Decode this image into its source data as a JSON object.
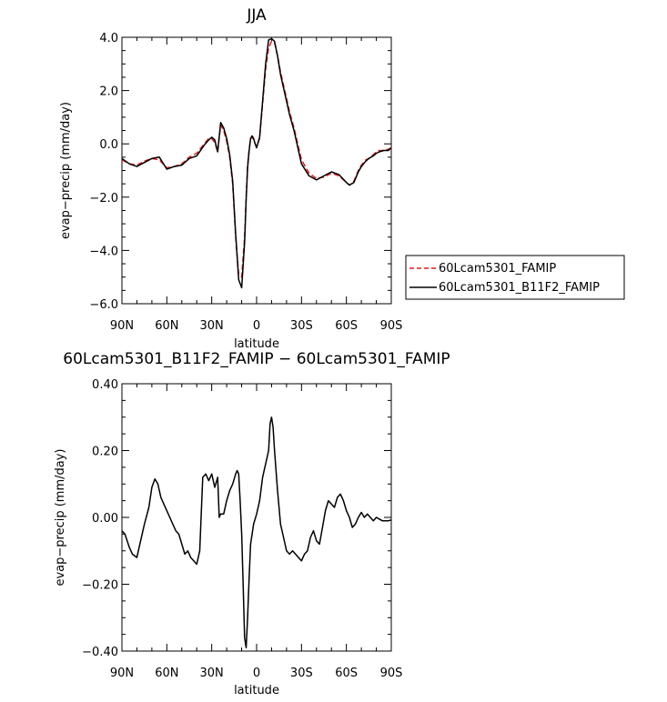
{
  "chart_data": [
    {
      "type": "line",
      "title": "JJA",
      "xlabel": "latitude",
      "ylabel": "evap−precip (mm/day)",
      "x_tick_labels": [
        "90N",
        "60N",
        "30N",
        "0",
        "30S",
        "60S",
        "90S"
      ],
      "x_tick_values": [
        90,
        60,
        30,
        0,
        -30,
        -60,
        -90
      ],
      "xlim": [
        90,
        -90
      ],
      "y_tick_labels": [
        "4.0",
        "2.0",
        "0.0",
        "−2.0",
        "−4.0",
        "−6.0"
      ],
      "y_tick_values": [
        4,
        2,
        0,
        -2,
        -4,
        -6
      ],
      "ylim": [
        -6,
        4
      ],
      "legend": {
        "placement": "right"
      },
      "series": [
        {
          "name": "60Lcam5301_FAMIP",
          "color": "#e31a1c",
          "dashed": true,
          "x": [
            90,
            85,
            80,
            75,
            70,
            65,
            60,
            55,
            50,
            45,
            40,
            35,
            32,
            30,
            28,
            26,
            24,
            22,
            20,
            18,
            16,
            14,
            12,
            10,
            8,
            7,
            6,
            5,
            4,
            3,
            2,
            1,
            0,
            -2,
            -4,
            -6,
            -8,
            -10,
            -12,
            -14,
            -16,
            -18,
            -20,
            -22,
            -25,
            -30,
            -35,
            -40,
            -45,
            -50,
            -55,
            -60,
            -62,
            -65,
            -68,
            -70,
            -73,
            -75,
            -78,
            -80,
            -82,
            -85,
            -88,
            -90
          ],
          "y": [
            -0.6,
            -0.75,
            -0.8,
            -0.65,
            -0.55,
            -0.6,
            -0.9,
            -0.85,
            -0.75,
            -0.5,
            -0.35,
            0.0,
            0.2,
            0.2,
            0.05,
            -0.3,
            0.7,
            0.5,
            0.1,
            -0.5,
            -1.5,
            -3.5,
            -4.9,
            -5.0,
            -3.5,
            -2.0,
            -0.8,
            -0.2,
            0.2,
            0.25,
            0.15,
            0.0,
            -0.1,
            0.2,
            1.5,
            2.8,
            3.6,
            3.85,
            3.8,
            3.3,
            2.7,
            2.2,
            1.7,
            1.2,
            0.6,
            -0.6,
            -1.1,
            -1.3,
            -1.25,
            -1.1,
            -1.2,
            -1.45,
            -1.55,
            -1.4,
            -1.0,
            -0.8,
            -0.6,
            -0.55,
            -0.4,
            -0.3,
            -0.25,
            -0.25,
            -0.2,
            -0.15
          ]
        },
        {
          "name": "60Lcam5301_B11F2_FAMIP",
          "color": "#000000",
          "dashed": false,
          "x": [
            90,
            85,
            80,
            75,
            70,
            65,
            60,
            55,
            50,
            45,
            40,
            35,
            32,
            30,
            28,
            26,
            24,
            22,
            20,
            18,
            16,
            14,
            12,
            10,
            8,
            7,
            6,
            5,
            4,
            3,
            2,
            1,
            0,
            -2,
            -4,
            -6,
            -8,
            -10,
            -12,
            -14,
            -16,
            -18,
            -20,
            -22,
            -25,
            -30,
            -35,
            -40,
            -45,
            -50,
            -55,
            -60,
            -62,
            -65,
            -68,
            -70,
            -73,
            -75,
            -78,
            -80,
            -82,
            -85,
            -88,
            -90
          ],
          "y": [
            -0.55,
            -0.75,
            -0.85,
            -0.7,
            -0.55,
            -0.5,
            -0.95,
            -0.85,
            -0.8,
            -0.55,
            -0.45,
            -0.05,
            0.15,
            0.25,
            0.15,
            -0.3,
            0.8,
            0.6,
            0.2,
            -0.4,
            -1.4,
            -3.4,
            -5.1,
            -5.4,
            -3.7,
            -2.1,
            -0.9,
            -0.25,
            0.2,
            0.3,
            0.2,
            0.0,
            -0.15,
            0.25,
            1.6,
            3.0,
            3.9,
            3.95,
            3.85,
            3.3,
            2.6,
            2.1,
            1.6,
            1.1,
            0.5,
            -0.75,
            -1.2,
            -1.35,
            -1.2,
            -1.05,
            -1.15,
            -1.45,
            -1.55,
            -1.45,
            -1.05,
            -0.85,
            -0.65,
            -0.55,
            -0.45,
            -0.35,
            -0.3,
            -0.25,
            -0.25,
            -0.15
          ]
        }
      ]
    },
    {
      "type": "line",
      "title": "60Lcam5301_B11F2_FAMIP − 60Lcam5301_FAMIP",
      "xlabel": "latitude",
      "ylabel": "evap−precip (mm/day)",
      "x_tick_labels": [
        "90N",
        "60N",
        "30N",
        "0",
        "30S",
        "60S",
        "90S"
      ],
      "x_tick_values": [
        90,
        60,
        30,
        0,
        -30,
        -60,
        -90
      ],
      "xlim": [
        90,
        -90
      ],
      "y_tick_labels": [
        "0.40",
        "0.20",
        "0.00",
        "−0.20",
        "−0.40"
      ],
      "y_tick_values": [
        0.4,
        0.2,
        0.0,
        -0.2,
        -0.4
      ],
      "ylim": [
        -0.4,
        0.4
      ],
      "series": [
        {
          "color": "#000000",
          "x": [
            90,
            88,
            85,
            83,
            80,
            78,
            75,
            72,
            70,
            68,
            66,
            64,
            62,
            60,
            58,
            56,
            54,
            52,
            50,
            48,
            46,
            44,
            42,
            40,
            38,
            36,
            34,
            32,
            30,
            28,
            26,
            25,
            24,
            22,
            20,
            18,
            16,
            14,
            13,
            12,
            11,
            10,
            9,
            8,
            7,
            6,
            5,
            4,
            2,
            0,
            -2,
            -4,
            -6,
            -8,
            -9,
            -10,
            -11,
            -12,
            -14,
            -16,
            -18,
            -20,
            -22,
            -24,
            -26,
            -28,
            -30,
            -32,
            -34,
            -36,
            -38,
            -40,
            -42,
            -44,
            -46,
            -48,
            -50,
            -52,
            -54,
            -56,
            -58,
            -60,
            -62,
            -64,
            -66,
            -68,
            -70,
            -72,
            -74,
            -76,
            -78,
            -80,
            -82,
            -84,
            -86,
            -88,
            -90
          ],
          "y": [
            -0.04,
            -0.05,
            -0.09,
            -0.11,
            -0.12,
            -0.08,
            -0.02,
            0.03,
            0.09,
            0.115,
            0.1,
            0.06,
            0.04,
            0.02,
            0.0,
            -0.02,
            -0.04,
            -0.05,
            -0.08,
            -0.11,
            -0.1,
            -0.12,
            -0.13,
            -0.14,
            -0.1,
            0.12,
            0.13,
            0.11,
            0.13,
            0.09,
            0.12,
            0.0,
            0.01,
            0.01,
            0.05,
            0.08,
            0.1,
            0.13,
            0.14,
            0.13,
            0.05,
            -0.05,
            -0.2,
            -0.36,
            -0.39,
            -0.3,
            -0.18,
            -0.08,
            -0.02,
            0.01,
            0.05,
            0.12,
            0.16,
            0.2,
            0.28,
            0.3,
            0.27,
            0.2,
            0.08,
            -0.02,
            -0.06,
            -0.1,
            -0.11,
            -0.1,
            -0.11,
            -0.12,
            -0.13,
            -0.11,
            -0.1,
            -0.06,
            -0.04,
            -0.07,
            -0.08,
            -0.03,
            0.02,
            0.05,
            0.04,
            0.03,
            0.06,
            0.07,
            0.05,
            0.02,
            0.0,
            -0.03,
            -0.02,
            0.0,
            0.015,
            0.0,
            0.01,
            0.0,
            -0.01,
            0.0,
            -0.005,
            -0.01,
            -0.01,
            -0.01,
            -0.008
          ]
        }
      ]
    }
  ]
}
